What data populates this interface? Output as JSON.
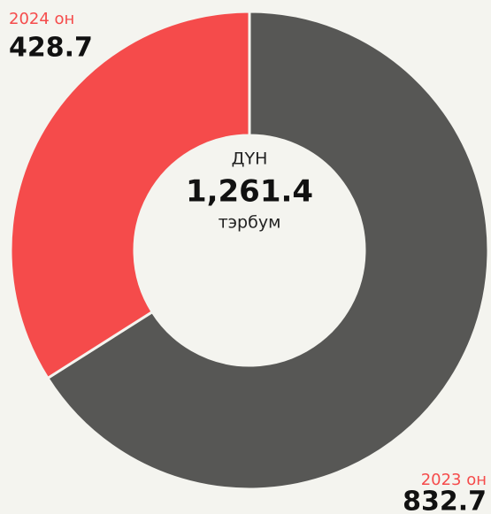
{
  "chart_data": {
    "type": "donut",
    "categories": [
      "2023 он",
      "2024 он"
    ],
    "values": [
      832.7,
      428.7
    ],
    "colors": [
      "#575755",
      "#f54b4b"
    ],
    "center_title": "ДҮН",
    "center_value": "1,261.4",
    "center_unit": "тэрбум"
  }
}
